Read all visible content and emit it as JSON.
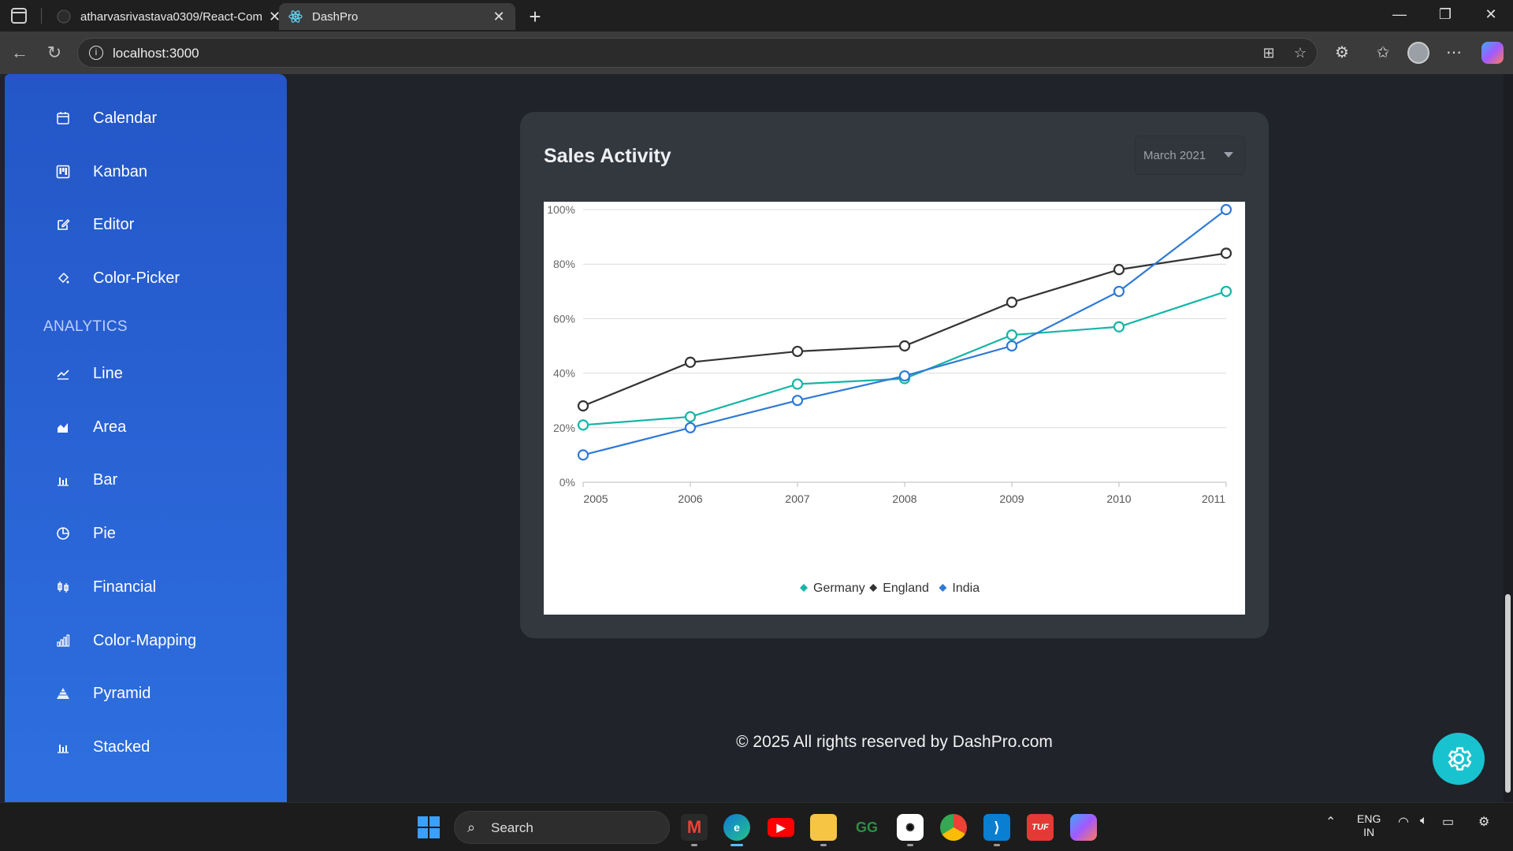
{
  "browser": {
    "tabs": [
      {
        "title": "atharvasrivastava0309/React-Com",
        "active": false
      },
      {
        "title": "DashPro",
        "active": true
      }
    ],
    "url": "localhost:3000"
  },
  "sidebar": {
    "items_top": [
      {
        "label": "Calendar",
        "icon": "calendar-icon"
      },
      {
        "label": "Kanban",
        "icon": "kanban-icon"
      },
      {
        "label": "Editor",
        "icon": "edit-icon"
      },
      {
        "label": "Color-Picker",
        "icon": "paint-bucket-icon"
      }
    ],
    "section_analytics": "ANALYTICS",
    "items_analytics": [
      {
        "label": "Line",
        "icon": "line-chart-icon"
      },
      {
        "label": "Area",
        "icon": "area-chart-icon"
      },
      {
        "label": "Bar",
        "icon": "bar-chart-icon"
      },
      {
        "label": "Pie",
        "icon": "pie-chart-icon"
      },
      {
        "label": "Financial",
        "icon": "financial-icon"
      },
      {
        "label": "Color-Mapping",
        "icon": "color-mapping-icon"
      },
      {
        "label": "Pyramid",
        "icon": "pyramid-icon"
      },
      {
        "label": "Stacked",
        "icon": "stacked-icon"
      }
    ]
  },
  "card": {
    "title": "Sales Activity",
    "dropdown_value": "March 2021"
  },
  "chart_data": {
    "type": "line",
    "x": [
      "2005",
      "2006",
      "2007",
      "2008",
      "2009",
      "2010",
      "2011"
    ],
    "ylim": [
      0,
      100
    ],
    "yticks": [
      "0%",
      "20%",
      "40%",
      "60%",
      "80%",
      "100%"
    ],
    "grid": true,
    "legend_position": "bottom",
    "series": [
      {
        "name": "Germany",
        "color": "#16b5a6",
        "values": [
          21,
          24,
          36,
          38,
          54,
          57,
          70
        ]
      },
      {
        "name": "England",
        "color": "#333333",
        "values": [
          28,
          44,
          48,
          50,
          66,
          78,
          84
        ]
      },
      {
        "name": "India",
        "color": "#2f7ad6",
        "values": [
          10,
          20,
          30,
          39,
          50,
          70,
          100
        ]
      }
    ]
  },
  "footer": {
    "text": "© 2025 All rights reserved by DashPro.com"
  },
  "taskbar": {
    "search_placeholder": "Search",
    "lang_line1": "ENG",
    "lang_line2": "IN"
  },
  "colors": {
    "sidebar_top": "#2456c7",
    "sidebar_bottom": "#2e6fe0",
    "fab": "#18c3cf",
    "page_bg": "#20232a",
    "card_bg": "#33373e"
  }
}
